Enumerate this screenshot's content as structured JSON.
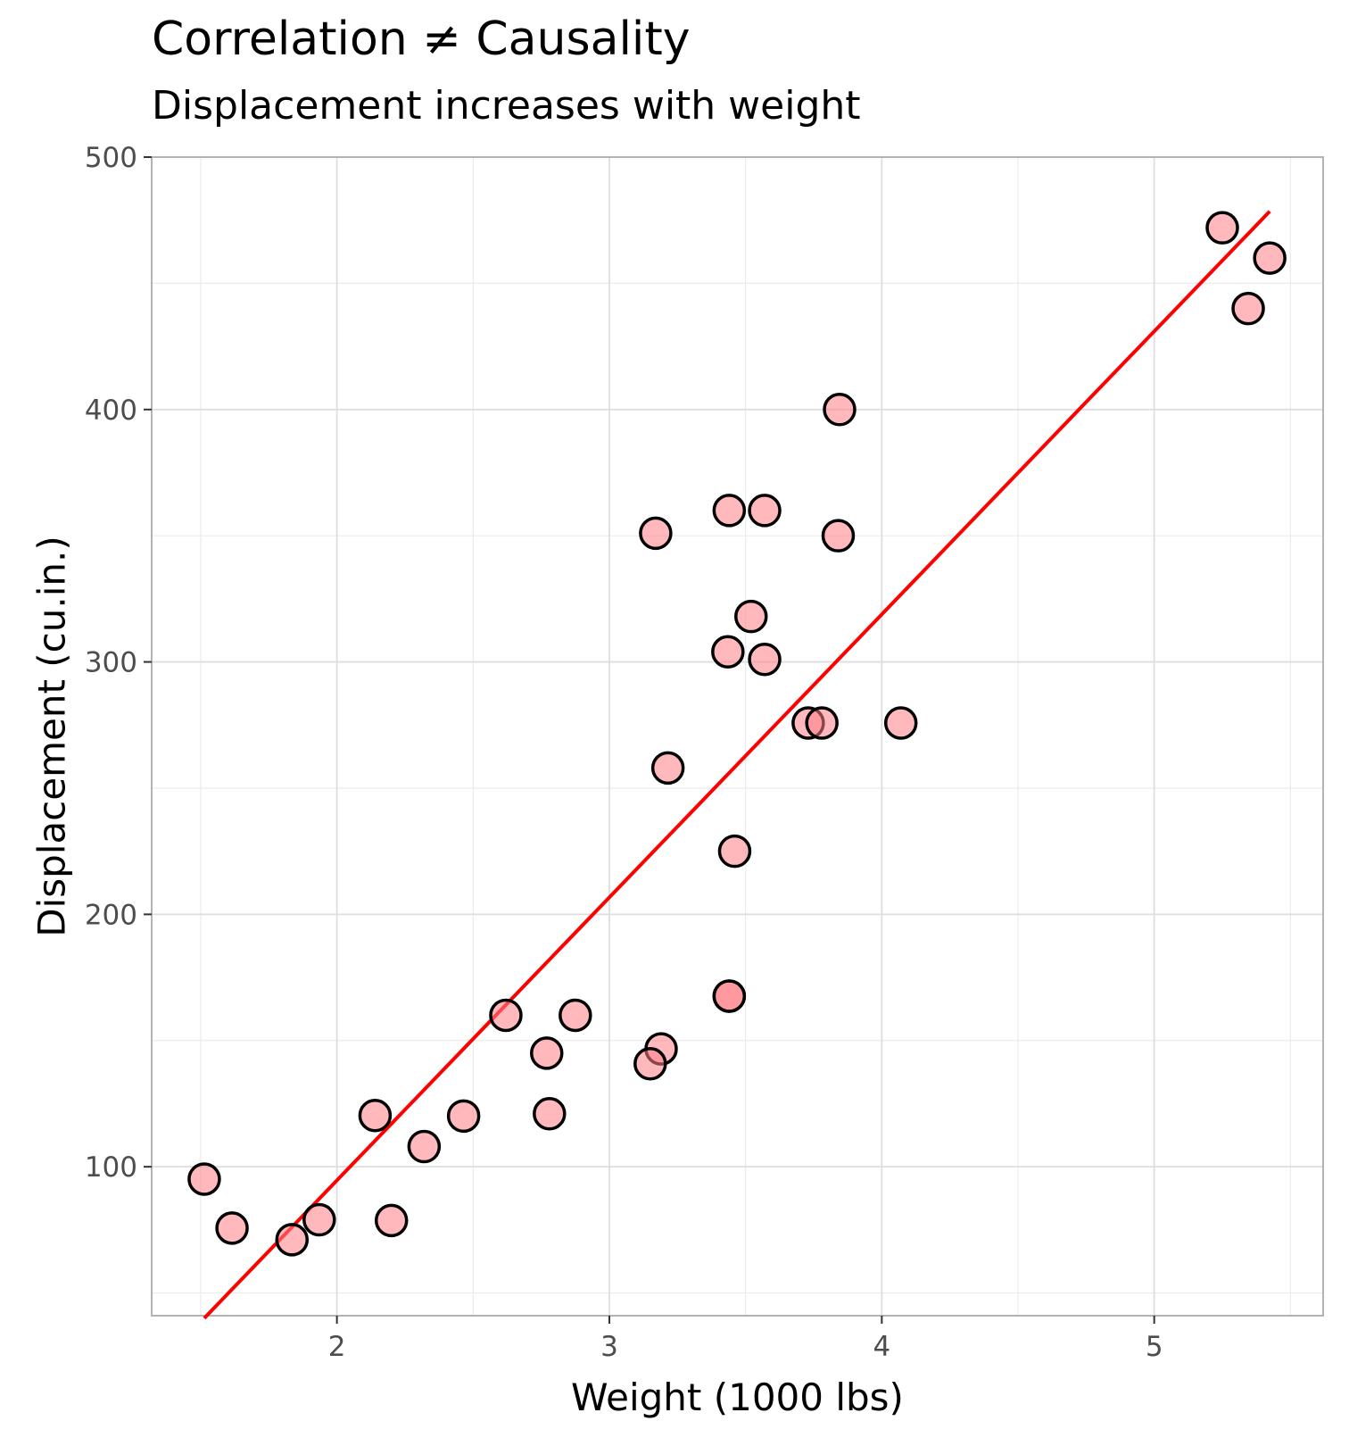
{
  "chart_data": {
    "type": "scatter",
    "title": "Correlation ≠ Causality",
    "subtitle": "Displacement increases with weight",
    "xlabel": "Weight (1000 lbs)",
    "ylabel": "Displacement (cu.in.)",
    "xlim": [
      1.32,
      5.62
    ],
    "ylim": [
      41,
      500
    ],
    "x_ticks": [
      2,
      3,
      4,
      5
    ],
    "y_ticks": [
      100,
      200,
      300,
      400,
      500
    ],
    "grid": true,
    "legend": "none",
    "point_fill": "#ffb3b8",
    "point_highlight_fill": "#f47a78",
    "point_stroke": "#000000",
    "trend_color": "#ff0000",
    "points": [
      {
        "x": 2.62,
        "y": 160.0
      },
      {
        "x": 2.875,
        "y": 160.0
      },
      {
        "x": 2.32,
        "y": 108.0
      },
      {
        "x": 3.215,
        "y": 258.0
      },
      {
        "x": 3.44,
        "y": 360.0
      },
      {
        "x": 3.46,
        "y": 225.0
      },
      {
        "x": 3.57,
        "y": 360.0
      },
      {
        "x": 3.19,
        "y": 146.7
      },
      {
        "x": 3.15,
        "y": 140.8
      },
      {
        "x": 3.44,
        "y": 167.6
      },
      {
        "x": 3.44,
        "y": 167.6
      },
      {
        "x": 4.07,
        "y": 275.8
      },
      {
        "x": 3.73,
        "y": 275.8
      },
      {
        "x": 3.78,
        "y": 275.8
      },
      {
        "x": 5.25,
        "y": 472.0
      },
      {
        "x": 5.424,
        "y": 460.0
      },
      {
        "x": 5.345,
        "y": 440.0
      },
      {
        "x": 2.2,
        "y": 78.7
      },
      {
        "x": 1.615,
        "y": 75.7
      },
      {
        "x": 1.835,
        "y": 71.1
      },
      {
        "x": 2.465,
        "y": 120.1
      },
      {
        "x": 3.52,
        "y": 318.0
      },
      {
        "x": 3.435,
        "y": 304.0
      },
      {
        "x": 3.84,
        "y": 350.0
      },
      {
        "x": 3.845,
        "y": 400.0
      },
      {
        "x": 1.935,
        "y": 79.0
      },
      {
        "x": 2.14,
        "y": 120.3
      },
      {
        "x": 1.513,
        "y": 95.1
      },
      {
        "x": 3.17,
        "y": 351.0
      },
      {
        "x": 2.77,
        "y": 145.0
      },
      {
        "x": 3.57,
        "y": 301.0
      },
      {
        "x": 2.78,
        "y": 121.0
      }
    ],
    "trend_line": {
      "x": [
        1.513,
        5.424
      ],
      "y": [
        40.0,
        478.5
      ]
    }
  }
}
